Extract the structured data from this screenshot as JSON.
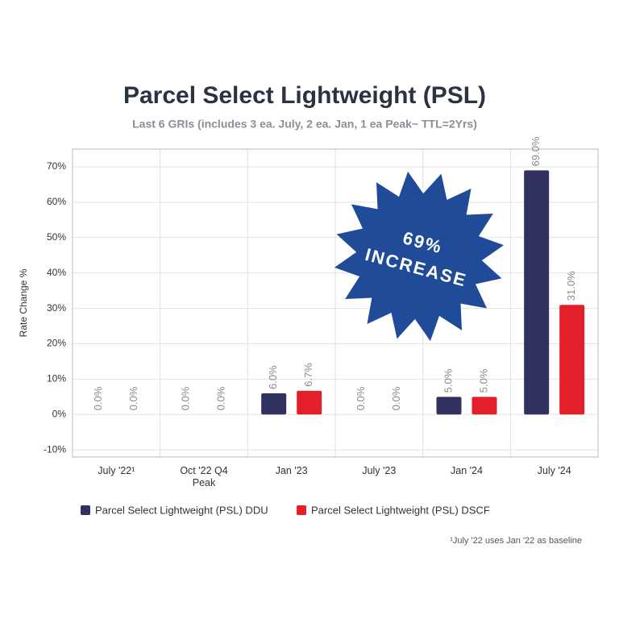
{
  "chart_data": {
    "type": "bar",
    "title": "Parcel Select Lightweight (PSL)",
    "subtitle": "Last 6 GRIs (includes 3 ea. July, 2 ea. Jan, 1 ea Peak~ TTL=2Yrs)",
    "y_axis_label": "Rate Change %",
    "categories": [
      "July '22¹",
      "Oct '22 Q4 Peak",
      "Jan '23",
      "July '23",
      "Jan '24",
      "July '24"
    ],
    "series": [
      {
        "name": "Parcel Select Lightweight (PSL) DDU",
        "color": "#31315f",
        "values": [
          0,
          0,
          6,
          0,
          5,
          69
        ],
        "value_labels": [
          "0.0%",
          "0.0%",
          "6.0%",
          "0.0%",
          "5.0%",
          "69.0%"
        ]
      },
      {
        "name": "Parcel Select Lightweight (PSL) DSCF",
        "color": "#e3202a",
        "values": [
          0,
          0,
          6.7,
          0,
          5,
          31
        ],
        "value_labels": [
          "0.0%",
          "0.0%",
          "6.7%",
          "0.0%",
          "5.0%",
          "31.0%"
        ]
      }
    ],
    "ylim": [
      -12,
      75
    ],
    "yticks": [
      {
        "value": -10,
        "label": "-10%"
      },
      {
        "value": 0,
        "label": "0%"
      },
      {
        "value": 10,
        "label": "10%"
      },
      {
        "value": 20,
        "label": "20%"
      },
      {
        "value": 30,
        "label": "30%"
      },
      {
        "value": 40,
        "label": "40%"
      },
      {
        "value": 50,
        "label": "50%"
      },
      {
        "value": 60,
        "label": "60%"
      },
      {
        "value": 70,
        "label": "70%"
      }
    ],
    "grid": true,
    "annotation": [
      "69%",
      "INCREASE"
    ],
    "annotation_color": "#1f4b99",
    "footnote": "¹July '22 uses Jan '22 as baseline"
  }
}
